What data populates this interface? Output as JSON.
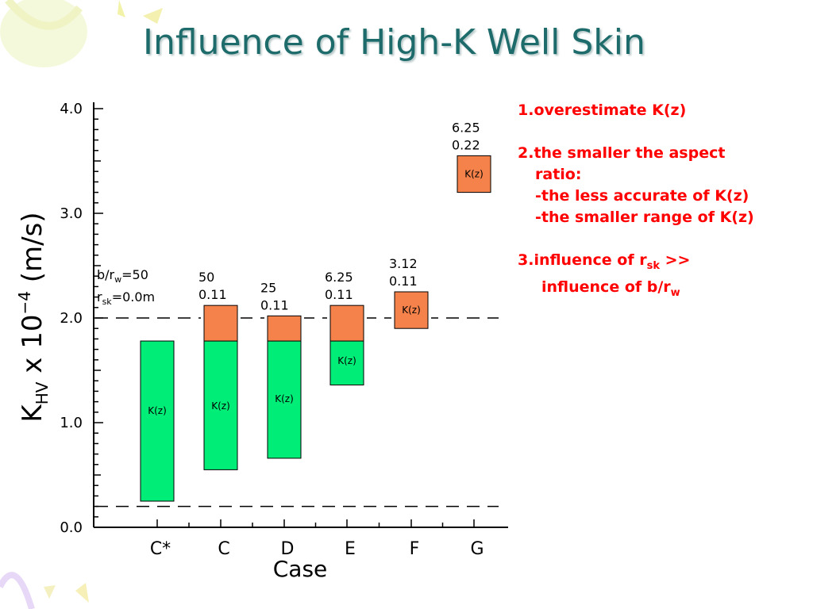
{
  "slide": {
    "title": "Influence of High-K Well Skin"
  },
  "notes": {
    "item1": "1.overestimate K(z)",
    "item2_line1": "2.the smaller the aspect",
    "item2_line2": "ratio:",
    "item2_line3": "-the less accurate of  K(z)",
    "item2_line4": "-the smaller range of K(z)",
    "item3_pre": "3.influence of r",
    "item3_sub1": "sk",
    "item3_mid": " >>",
    "item3_line2_pre": "influence of b/r",
    "item3_sub2": "w"
  },
  "annotations": {
    "cstar_line1_pre": "b/r",
    "cstar_line1_sub": "w",
    "cstar_line1_post": "=50",
    "cstar_line2_pre": "r",
    "cstar_line2_sub": "sk",
    "cstar_line2_post": "=0.0m"
  },
  "colors": {
    "green": "#00ee77",
    "orange": "#f5824a",
    "title": "#1e6b6b",
    "notes": "#ff0000"
  },
  "chart_data": {
    "type": "bar",
    "xlabel": "Case",
    "ylabel": "K_HV x 10^-4 (m/s)",
    "ylim": [
      0,
      4.0
    ],
    "yticks": [
      "0.0",
      "1.0",
      "2.0",
      "3.0",
      "4.0"
    ],
    "reference_lines": [
      2.0,
      0.2
    ],
    "bar_label": "K(z)",
    "cases": [
      {
        "name": "C*",
        "aspect": "",
        "rsk": "",
        "green": [
          0.25,
          1.78
        ],
        "orange": null
      },
      {
        "name": "C",
        "aspect": "50",
        "rsk": "0.11",
        "green": [
          0.55,
          1.78
        ],
        "orange": [
          1.78,
          2.12
        ]
      },
      {
        "name": "D",
        "aspect": "25",
        "rsk": "0.11",
        "green": [
          0.66,
          1.78
        ],
        "orange": [
          1.78,
          2.02
        ]
      },
      {
        "name": "E",
        "aspect": "6.25",
        "rsk": "0.11",
        "green": [
          1.36,
          1.78
        ],
        "orange": [
          1.78,
          2.12
        ]
      },
      {
        "name": "F",
        "aspect": "3.12",
        "rsk": "0.11",
        "green": null,
        "orange": [
          1.9,
          2.25
        ]
      },
      {
        "name": "G",
        "aspect": "6.25",
        "rsk": "0.22",
        "green": null,
        "orange": [
          3.2,
          3.55
        ]
      }
    ]
  }
}
